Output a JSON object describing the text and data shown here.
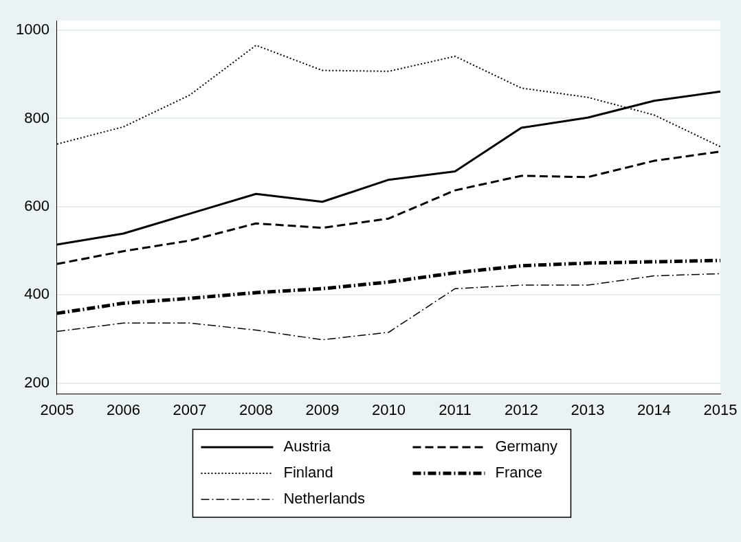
{
  "chart_data": {
    "type": "line",
    "categories": [
      "2005",
      "2006",
      "2007",
      "2008",
      "2009",
      "2010",
      "2011",
      "2012",
      "2013",
      "2014",
      "2015"
    ],
    "series": [
      {
        "name": "Austria",
        "color": "#000000",
        "line_style": "solid",
        "values": [
          514,
          539,
          584,
          629,
          611,
          661,
          680,
          779,
          802,
          840,
          861
        ]
      },
      {
        "name": "Germany",
        "color": "#000000",
        "line_style": "dashed",
        "values": [
          470,
          499,
          523,
          562,
          552,
          573,
          637,
          670,
          667,
          704,
          725
        ]
      },
      {
        "name": "Finland",
        "color": "#000000",
        "line_style": "dotted",
        "values": [
          742,
          781,
          853,
          966,
          909,
          907,
          941,
          869,
          848,
          808,
          736
        ]
      },
      {
        "name": "France",
        "color": "#000000",
        "line_style": "dashdot",
        "values": [
          358,
          381,
          392,
          405,
          414,
          429,
          450,
          466,
          472,
          475,
          478
        ]
      },
      {
        "name": "Netherlands",
        "color": "#000000",
        "line_style": "dashdot",
        "values": [
          317,
          336,
          336,
          320,
          298,
          315,
          414,
          422,
          422,
          443,
          448
        ]
      }
    ],
    "ylim": [
      175,
      1022
    ],
    "yticks": [
      200,
      400,
      600,
      800,
      1000
    ],
    "grid": "y",
    "legend": "bottom",
    "marker": "none"
  }
}
